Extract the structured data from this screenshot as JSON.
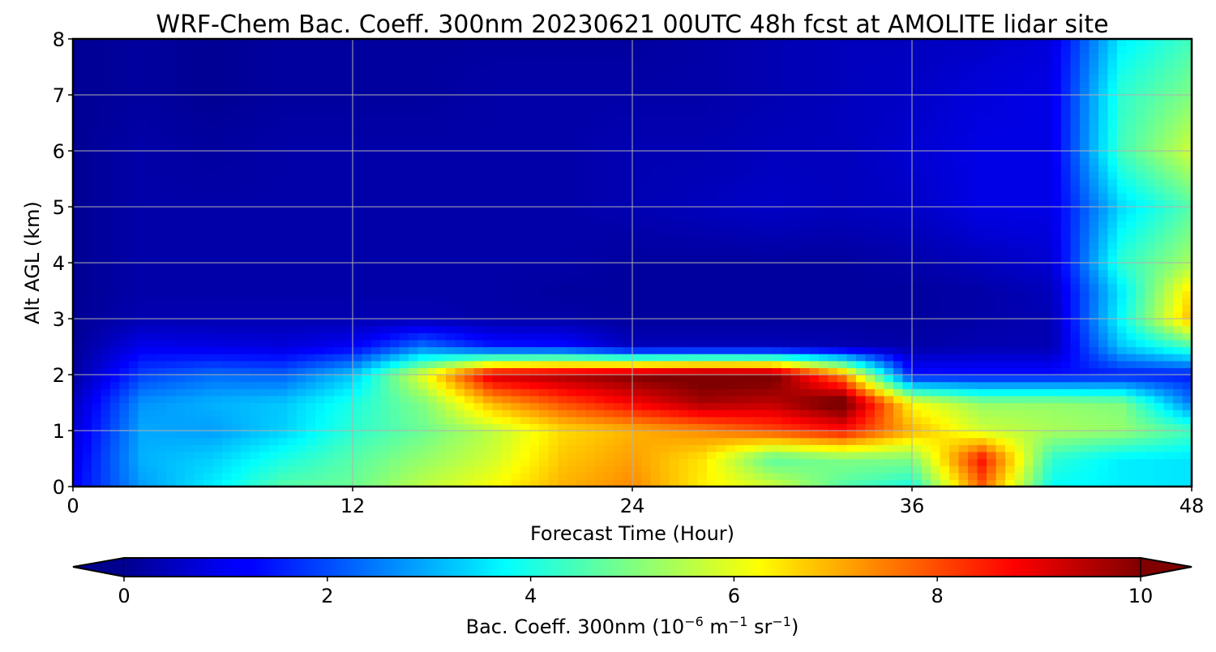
{
  "chart_data": {
    "type": "heatmap",
    "title": "WRF-Chem Bac. Coeff. 300nm  20230621 00UTC 48h fcst at AMOLITE lidar site",
    "xlabel": "Forecast Time (Hour)",
    "ylabel": "Alt AGL (km)",
    "xlim": [
      0,
      48
    ],
    "ylim": [
      0,
      8
    ],
    "xticks": [
      0,
      12,
      24,
      36,
      48
    ],
    "yticks": [
      0,
      1,
      2,
      3,
      4,
      5,
      6,
      7,
      8
    ],
    "grid": true,
    "colormap": "jet",
    "colorbar": {
      "label_main": "Bac. Coeff. 300nm  (10",
      "label_exp1": "−6",
      "label_mid": " m",
      "label_exp2": "−1",
      "label_mid2": " sr",
      "label_exp3": "−1",
      "label_end": ")",
      "range": [
        0,
        10
      ],
      "ticks": [
        0,
        2,
        4,
        6,
        8,
        10
      ],
      "extend": "both",
      "under_color": "#00008f",
      "over_color": "#800000"
    },
    "x": [
      0,
      3,
      6,
      9,
      12,
      15,
      18,
      21,
      24,
      27,
      30,
      33,
      36,
      39,
      42,
      45,
      48
    ],
    "y": [
      0,
      0.5,
      1,
      1.5,
      2,
      2.5,
      3,
      3.5,
      4,
      5,
      6,
      7,
      8
    ],
    "z": [
      [
        1.2,
        2.8,
        3.6,
        4.6,
        4.8,
        5.6,
        6.2,
        7.0,
        7.4,
        6.4,
        5.8,
        4.6,
        4.0,
        7.8,
        3.8,
        3.6,
        3.5
      ],
      [
        1.0,
        3.0,
        3.3,
        4.0,
        4.6,
        5.2,
        5.8,
        6.8,
        7.2,
        6.5,
        4.6,
        5.0,
        5.0,
        8.6,
        4.2,
        3.6,
        3.5
      ],
      [
        0.8,
        2.9,
        2.8,
        3.3,
        4.2,
        4.8,
        5.6,
        6.6,
        7.0,
        7.4,
        8.0,
        8.6,
        7.0,
        5.8,
        5.4,
        5.2,
        4.4
      ],
      [
        0.6,
        2.7,
        3.0,
        3.2,
        4.0,
        5.0,
        7.0,
        8.0,
        8.8,
        9.6,
        9.4,
        10.4,
        6.2,
        5.2,
        5.2,
        5.0,
        2.4
      ],
      [
        0.3,
        1.9,
        2.3,
        2.2,
        3.2,
        6.0,
        9.2,
        9.6,
        10.0,
        10.3,
        10.2,
        7.4,
        1.4,
        1.4,
        1.4,
        1.5,
        1.5
      ],
      [
        0.2,
        1.1,
        1.0,
        0.9,
        1.2,
        2.4,
        1.5,
        1.4,
        0.6,
        0.6,
        0.6,
        0.5,
        0.4,
        0.5,
        0.5,
        3.2,
        4.4
      ],
      [
        0.2,
        0.5,
        0.5,
        0.5,
        0.5,
        0.5,
        0.4,
        0.4,
        0.3,
        0.3,
        0.3,
        0.3,
        0.3,
        0.4,
        0.5,
        3.8,
        7.0
      ],
      [
        0.2,
        0.4,
        0.4,
        0.4,
        0.4,
        0.4,
        0.4,
        0.3,
        0.3,
        0.3,
        0.3,
        0.3,
        0.3,
        0.4,
        0.6,
        3.6,
        6.6
      ],
      [
        0.2,
        0.4,
        0.4,
        0.4,
        0.4,
        0.4,
        0.4,
        0.4,
        0.3,
        0.3,
        0.3,
        0.3,
        0.4,
        0.6,
        0.8,
        4.2,
        5.4
      ],
      [
        0.2,
        0.4,
        0.4,
        0.4,
        0.4,
        0.4,
        0.4,
        0.4,
        0.5,
        0.6,
        0.7,
        0.6,
        0.7,
        1.0,
        1.0,
        3.4,
        4.6
      ],
      [
        0.2,
        0.4,
        0.3,
        0.4,
        0.4,
        0.4,
        0.4,
        0.4,
        0.5,
        0.5,
        0.6,
        0.6,
        0.8,
        1.0,
        1.0,
        4.4,
        5.8
      ],
      [
        0.2,
        0.3,
        0.2,
        0.3,
        0.3,
        0.3,
        0.4,
        0.4,
        0.4,
        0.4,
        0.5,
        0.6,
        0.7,
        0.9,
        1.0,
        4.2,
        5.0
      ],
      [
        0.2,
        0.3,
        0.2,
        0.3,
        0.3,
        0.3,
        0.3,
        0.3,
        0.3,
        0.4,
        0.5,
        0.6,
        0.6,
        0.7,
        0.9,
        3.6,
        4.4
      ]
    ]
  }
}
